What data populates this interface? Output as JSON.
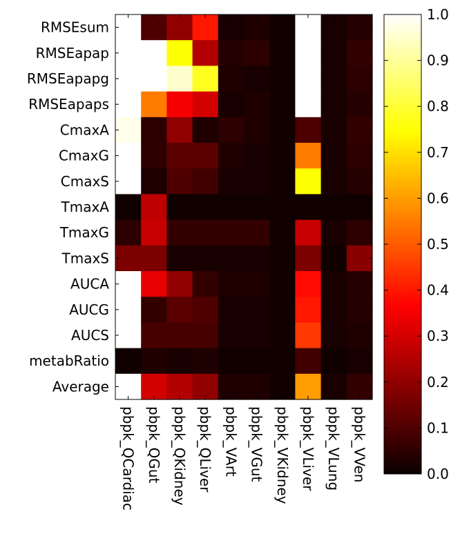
{
  "chart_data": {
    "type": "heatmap",
    "title": "",
    "xlabel": "",
    "ylabel": "",
    "colormap": "hot",
    "colorbar": {
      "min": 0.0,
      "max": 1.0,
      "ticks": [
        "0.0",
        "0.1",
        "0.2",
        "0.3",
        "0.4",
        "0.5",
        "0.6",
        "0.7",
        "0.8",
        "0.9",
        "1.0"
      ]
    },
    "rows": [
      "RMSEsum",
      "RMSEapap",
      "RMSEapapg",
      "RMSEapaps",
      "CmaxA",
      "CmaxG",
      "CmaxS",
      "TmaxA",
      "TmaxG",
      "TmaxS",
      "AUCA",
      "AUCG",
      "AUCS",
      "metabRatio",
      "Average"
    ],
    "columns": [
      "pbpk_QCardiac",
      "pbpk_QGut",
      "pbpk_QKidney",
      "pbpk_QLiver",
      "pbpk_VArt",
      "pbpk_VGut",
      "pbpk_VKidney",
      "pbpk_VLiver",
      "pbpk_VLung",
      "pbpk_VVen"
    ],
    "values": [
      [
        1.0,
        0.1,
        0.2,
        0.4,
        0.02,
        0.03,
        0.01,
        1.0,
        0.02,
        0.04
      ],
      [
        1.0,
        1.0,
        0.75,
        0.25,
        0.04,
        0.05,
        0.01,
        1.0,
        0.02,
        0.06
      ],
      [
        1.0,
        1.0,
        0.95,
        0.78,
        0.03,
        0.02,
        0.01,
        1.0,
        0.02,
        0.05
      ],
      [
        1.0,
        0.55,
        0.35,
        0.3,
        0.02,
        0.03,
        0.01,
        1.0,
        0.02,
        0.04
      ],
      [
        0.98,
        0.05,
        0.2,
        0.03,
        0.05,
        0.03,
        0.01,
        0.1,
        0.02,
        0.06
      ],
      [
        1.0,
        0.05,
        0.12,
        0.12,
        0.03,
        0.02,
        0.01,
        0.55,
        0.02,
        0.05
      ],
      [
        1.0,
        0.03,
        0.1,
        0.08,
        0.02,
        0.02,
        0.01,
        0.75,
        0.02,
        0.04
      ],
      [
        0.01,
        0.27,
        0.01,
        0.01,
        0.01,
        0.01,
        0.01,
        0.01,
        0.01,
        0.01
      ],
      [
        0.05,
        0.28,
        0.06,
        0.06,
        0.06,
        0.06,
        0.01,
        0.28,
        0.02,
        0.05
      ],
      [
        0.17,
        0.17,
        0.02,
        0.02,
        0.02,
        0.02,
        0.01,
        0.17,
        0.01,
        0.19
      ],
      [
        1.0,
        0.33,
        0.2,
        0.06,
        0.03,
        0.03,
        0.01,
        0.38,
        0.02,
        0.04
      ],
      [
        1.0,
        0.06,
        0.12,
        0.1,
        0.02,
        0.02,
        0.01,
        0.4,
        0.02,
        0.04
      ],
      [
        1.0,
        0.09,
        0.09,
        0.09,
        0.02,
        0.02,
        0.01,
        0.45,
        0.02,
        0.03
      ],
      [
        0.01,
        0.03,
        0.02,
        0.03,
        0.01,
        0.01,
        0.01,
        0.08,
        0.01,
        0.02
      ],
      [
        1.0,
        0.3,
        0.25,
        0.2,
        0.03,
        0.03,
        0.01,
        0.6,
        0.02,
        0.06
      ]
    ]
  }
}
